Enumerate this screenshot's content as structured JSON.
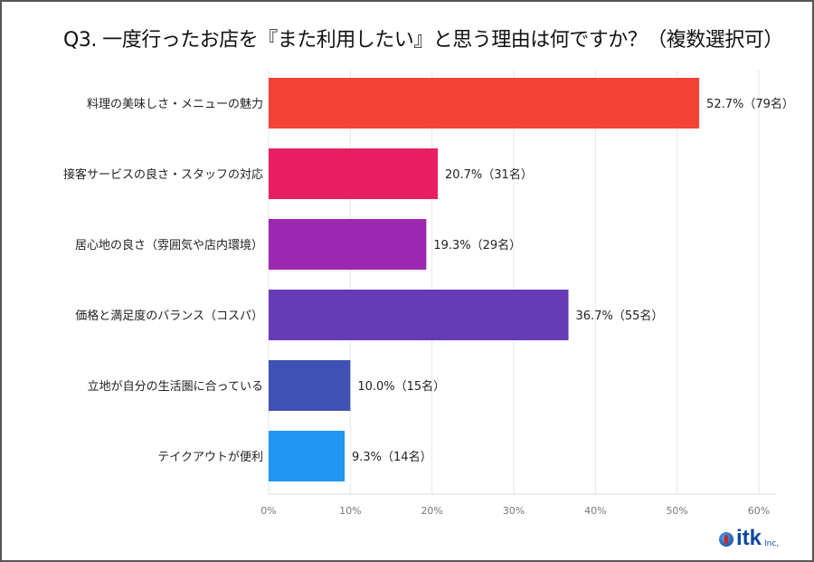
{
  "chart_data": {
    "type": "bar",
    "orientation": "horizontal",
    "title": "Q3. 一度行ったお店を『また利用したい』と思う理由は何ですか？（複数選択可）",
    "categories": [
      "料理の美味しさ・メニューの魅力",
      "接客サービスの良さ・スタッフの対応",
      "居心地の良さ（雰囲気や店内環境）",
      "価格と満足度のバランス（コスパ）",
      "立地が自分の生活圏に合っている",
      "テイクアウトが便利"
    ],
    "values": [
      52.7,
      20.7,
      19.3,
      36.7,
      10.0,
      9.3
    ],
    "data_labels": [
      "52.7%（79名）",
      "20.7%（31名）",
      "19.3%（29名）",
      "36.7%（55名）",
      "10.0%（15名）",
      "9.3%（14名）"
    ],
    "colors": [
      "#F44336",
      "#E91E63",
      "#9C27B0",
      "#673AB7",
      "#3F51B5",
      "#2196F3"
    ],
    "xlim": [
      0,
      60
    ],
    "xticks": [
      0,
      10,
      20,
      30,
      40,
      50,
      60
    ],
    "xtick_labels": [
      "0%",
      "10%",
      "20%",
      "30%",
      "40%",
      "50%",
      "60%"
    ],
    "grid": true,
    "xlabel": "",
    "ylabel": ""
  },
  "logo": {
    "text": "itk",
    "suffix": "Inc,"
  }
}
